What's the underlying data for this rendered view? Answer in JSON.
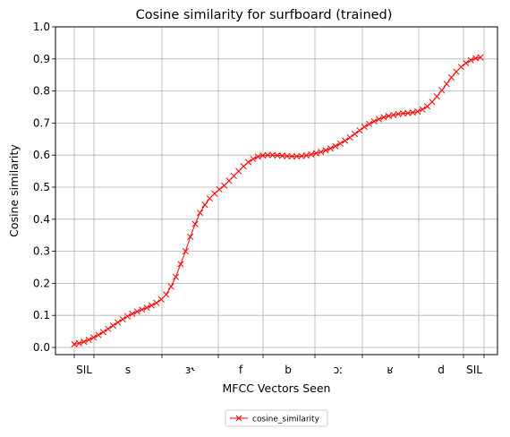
{
  "chart_data": {
    "type": "line",
    "title": "Cosine similarity for surfboard (trained)",
    "xlabel": "MFCC Vectors Seen",
    "ylabel": "Cosine similarity",
    "ylim": [
      0.0,
      1.0
    ],
    "yticks": [
      "0.0",
      "0.1",
      "0.2",
      "0.3",
      "0.4",
      "0.5",
      "0.6",
      "0.7",
      "0.8",
      "0.9",
      "1.0"
    ],
    "x_phone_labels": [
      "SIL",
      "s",
      "ɜ˞",
      "f",
      "b",
      "ɔː",
      "ʁ",
      "d",
      "SIL"
    ],
    "grid": true,
    "legend_position": "bottom-center",
    "series": [
      {
        "name": "cosine_similarity",
        "color": "#ff0000",
        "marker": "x",
        "values": [
          0.01,
          0.013,
          0.018,
          0.024,
          0.031,
          0.039,
          0.048,
          0.058,
          0.068,
          0.078,
          0.088,
          0.097,
          0.105,
          0.112,
          0.118,
          0.124,
          0.131,
          0.139,
          0.15,
          0.165,
          0.19,
          0.22,
          0.26,
          0.3,
          0.345,
          0.385,
          0.42,
          0.445,
          0.465,
          0.48,
          0.493,
          0.505,
          0.52,
          0.535,
          0.55,
          0.565,
          0.578,
          0.588,
          0.595,
          0.599,
          0.6,
          0.6,
          0.599,
          0.598,
          0.597,
          0.596,
          0.596,
          0.597,
          0.599,
          0.602,
          0.606,
          0.61,
          0.615,
          0.621,
          0.628,
          0.636,
          0.645,
          0.655,
          0.666,
          0.677,
          0.688,
          0.697,
          0.705,
          0.712,
          0.718,
          0.722,
          0.725,
          0.728,
          0.73,
          0.731,
          0.733,
          0.736,
          0.742,
          0.752,
          0.766,
          0.783,
          0.802,
          0.822,
          0.842,
          0.86,
          0.875,
          0.887,
          0.896,
          0.902,
          0.905
        ]
      }
    ]
  }
}
